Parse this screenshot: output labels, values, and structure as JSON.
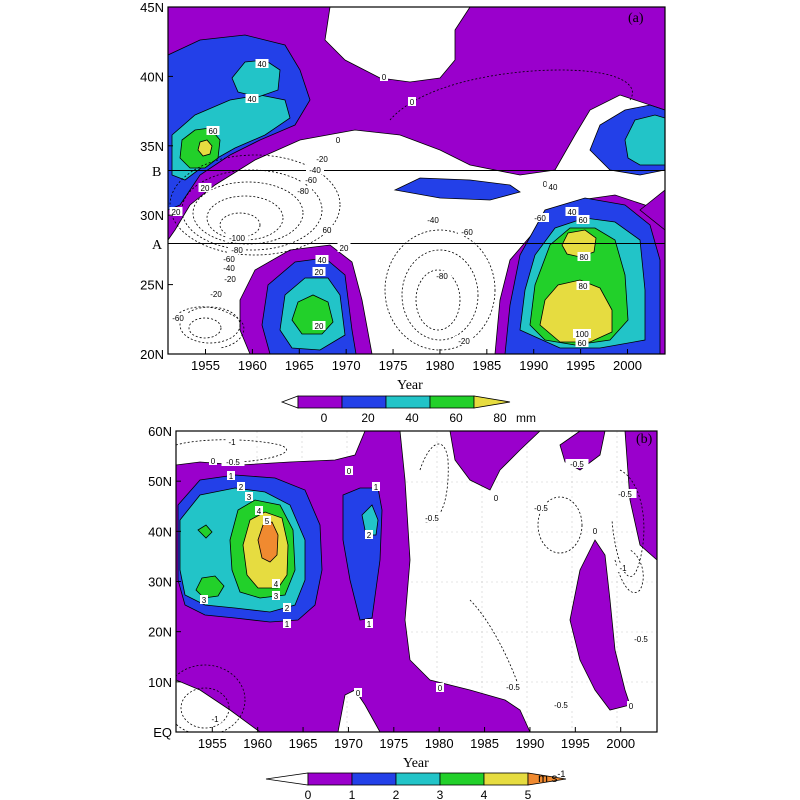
{
  "chart_data": [
    {
      "type": "heatmap",
      "panel_label": "(a)",
      "xlabel": "Year",
      "ylabel": "",
      "xlim": [
        1951,
        2004
      ],
      "ylim": [
        20,
        45
      ],
      "x_ticks": [
        "1955",
        "1960",
        "1965",
        "1970",
        "1975",
        "1980",
        "1985",
        "1990",
        "1995",
        "2000"
      ],
      "x_tick_values": [
        1955,
        1960,
        1965,
        1970,
        1975,
        1980,
        1985,
        1990,
        1995,
        2000
      ],
      "y_ticks": [
        "20N",
        "25N",
        "30N",
        "35N",
        "40N",
        "45N"
      ],
      "y_tick_values": [
        20,
        25,
        30,
        35,
        40,
        45
      ],
      "reference_lines": [
        {
          "label": "A",
          "y": 27.8
        },
        {
          "label": "B",
          "y": 33.1
        }
      ],
      "colorbar": {
        "levels": [
          "0",
          "20",
          "40",
          "60",
          "80"
        ],
        "unit": "mm",
        "colors": [
          "#ffffff",
          "#9a00cc",
          "#2340e8",
          "#22c4c8",
          "#22d02a",
          "#e6dc40"
        ]
      },
      "contour_labels": [
        "40",
        "40",
        "60",
        "0",
        "0",
        "20",
        "40",
        "60",
        "80",
        "80",
        "100",
        "60",
        "20",
        "0",
        "-20",
        "-40",
        "-60",
        "-80",
        "-100",
        "-80",
        "-60",
        "-40",
        "-20",
        "-20",
        "-60",
        "-20",
        "-40",
        "-60",
        "-80",
        "-60",
        "0",
        "40",
        "20",
        "60",
        "20",
        "40",
        "20"
      ],
      "features": [
        {
          "type": "positive",
          "level": 20,
          "center": [
            1958,
            39.5
          ],
          "extent": [
            [
              1951,
              35
            ],
            [
              1963,
              45
            ]
          ]
        },
        {
          "type": "positive",
          "level": 60,
          "center": [
            1954.5,
            34.3
          ]
        },
        {
          "type": "positive",
          "level": 60,
          "center": [
            1967,
            23.5
          ]
        },
        {
          "type": "positive",
          "level": 80,
          "center": [
            1995,
            22.5
          ]
        },
        {
          "type": "positive",
          "level": 100,
          "center": [
            1995.5,
            21.5
          ]
        },
        {
          "type": "negative",
          "level": -100,
          "center": [
            1962,
            28.5
          ]
        },
        {
          "type": "negative",
          "level": -80,
          "center": [
            1981,
            25
          ]
        }
      ]
    },
    {
      "type": "heatmap",
      "panel_label": "(b)",
      "xlabel": "Year",
      "ylabel": "",
      "xlim": [
        1951,
        2004
      ],
      "ylim": [
        0,
        60
      ],
      "x_ticks": [
        "1955",
        "1960",
        "1965",
        "1970",
        "1975",
        "1980",
        "1985",
        "1990",
        "1995",
        "2000"
      ],
      "x_tick_values": [
        1955,
        1960,
        1965,
        1970,
        1975,
        1980,
        1985,
        1990,
        1995,
        2000
      ],
      "y_ticks": [
        "EQ",
        "10N",
        "20N",
        "30N",
        "40N",
        "50N",
        "60N"
      ],
      "y_tick_values": [
        0,
        10,
        20,
        30,
        40,
        50,
        60
      ],
      "colorbar": {
        "levels": [
          "0",
          "1",
          "2",
          "3",
          "4",
          "5"
        ],
        "unit": "m s",
        "unit_sup": "-1",
        "colors": [
          "#ffffff",
          "#9a00cc",
          "#2340e8",
          "#22c4c8",
          "#22d02a",
          "#e6dc40",
          "#f08a30"
        ]
      },
      "contour_labels": [
        "0",
        "0",
        "-1",
        "-0.5",
        "1",
        "2",
        "3",
        "4",
        "5",
        "4",
        "3",
        "2",
        "1",
        "3",
        "1",
        "2",
        "1",
        "0",
        "0",
        "-0.5",
        "-0.5",
        "-0.5",
        "-0.5",
        "0",
        "-0.5",
        "-1",
        "-0.5",
        "0",
        "-0.5",
        "0",
        "-1"
      ],
      "features": [
        {
          "type": "positive",
          "level": 1,
          "center": [
            1962,
            35
          ],
          "extent": [
            [
              1951,
              15
            ],
            [
              1975,
              55
            ]
          ]
        },
        {
          "type": "positive",
          "level": 5,
          "center": [
            1961.5,
            39
          ]
        },
        {
          "type": "positive",
          "level": 2,
          "center": [
            1972,
            40
          ]
        },
        {
          "type": "negative",
          "level": -1,
          "center": [
            1954,
            10
          ]
        },
        {
          "type": "negative",
          "level": -1,
          "center": [
            2000.5,
            30
          ]
        }
      ]
    }
  ]
}
